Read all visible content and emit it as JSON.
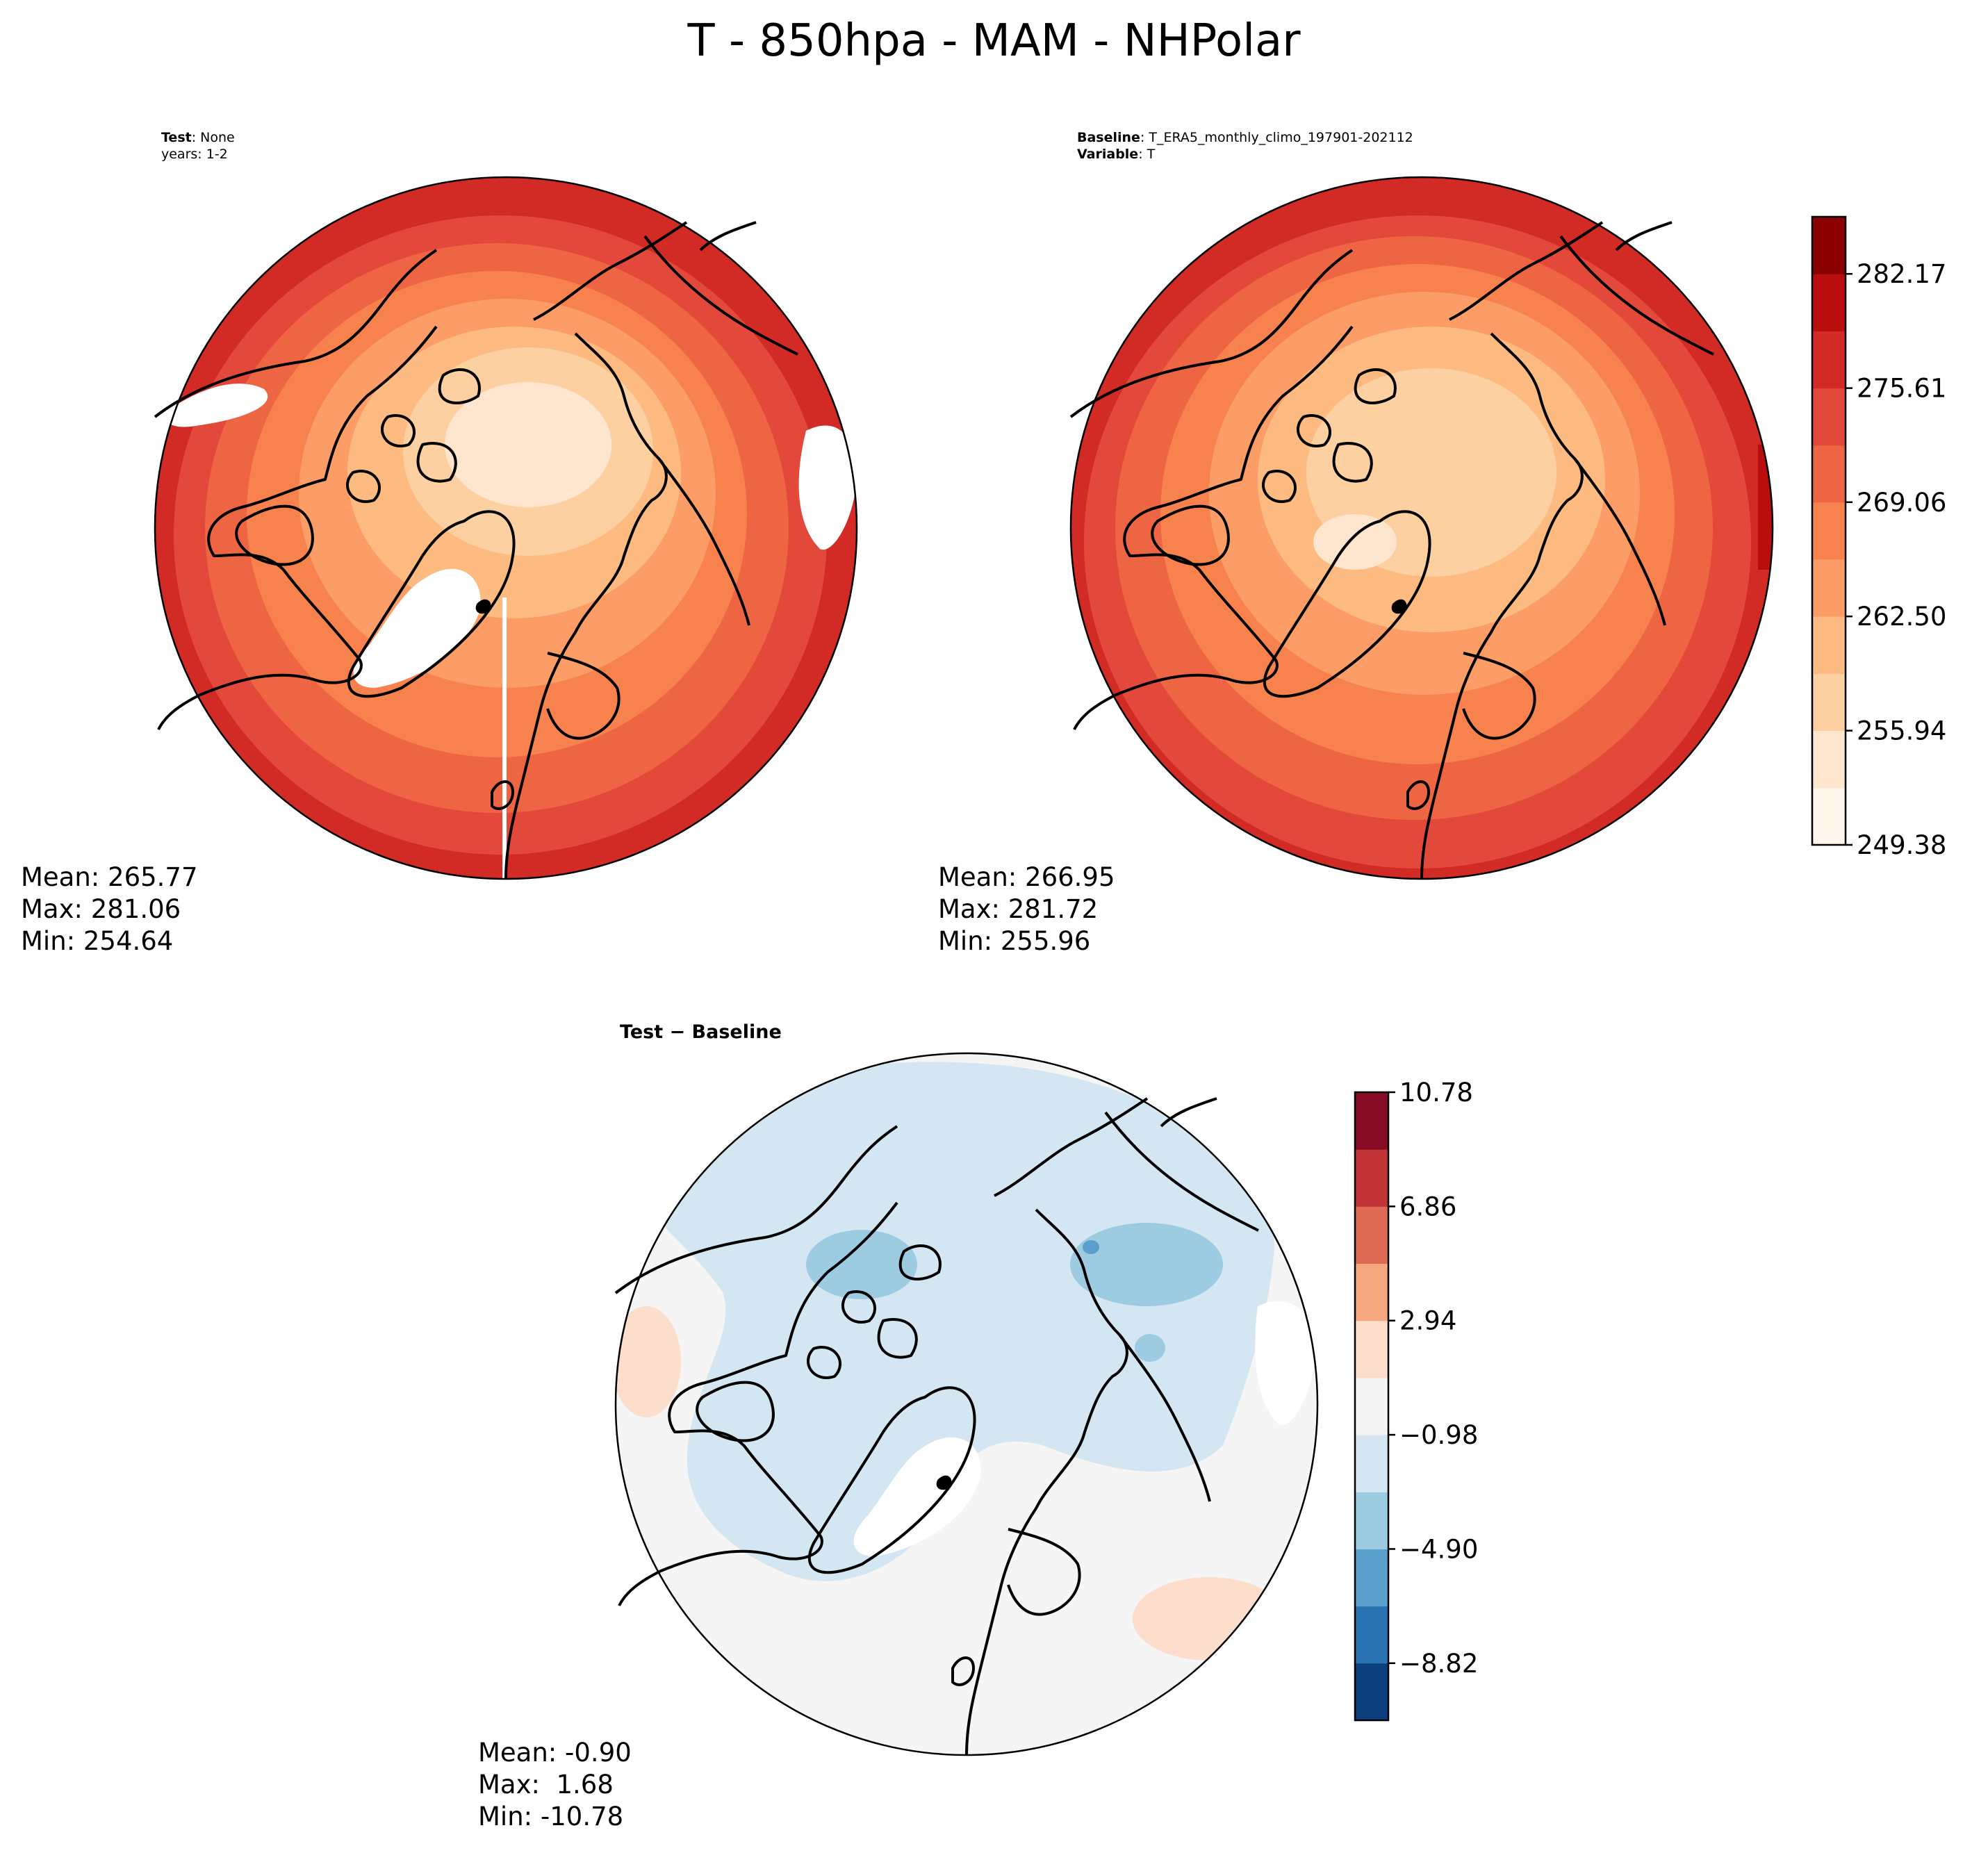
{
  "figure": {
    "title": "T - 850hpa - MAM - NHPolar"
  },
  "chart_data": [
    {
      "type": "heatmap",
      "name": "test",
      "projection": "north-polar-stereographic",
      "header_label_1": "Test",
      "header_value_1": "None",
      "header_line_2": "years: 1-2",
      "stats": {
        "mean": "Mean: 265.77",
        "max": "Max: 281.06",
        "min": "Min: 254.64"
      },
      "colormap": "OrRd-like",
      "missing_regions": [
        "north-atlantic-patch",
        "greenland",
        "east-siberia-patch",
        "meridian-seam"
      ]
    },
    {
      "type": "heatmap",
      "name": "baseline",
      "projection": "north-polar-stereographic",
      "header_label_1": "Baseline",
      "header_value_1": "T_ERA5_monthly_climo_197901-202112",
      "header_label_2": "Variable",
      "header_value_2": "T",
      "stats": {
        "mean": "Mean: 266.95",
        "max": "Max: 281.72",
        "min": "Min: 255.96"
      },
      "colorbar": {
        "levels": [
          249.38,
          252.66,
          255.94,
          259.22,
          262.5,
          265.78,
          269.06,
          272.33,
          275.61,
          278.89,
          282.17,
          285.45
        ],
        "tick_labels": [
          "249.38",
          "255.94",
          "262.50",
          "269.06",
          "275.61",
          "282.17"
        ],
        "colors": [
          "#fff5eb",
          "#fee6ce",
          "#fdd0a2",
          "#fdba81",
          "#fc9d67",
          "#f8824e",
          "#ee6543",
          "#e2493a",
          "#d22b26",
          "#b90d0e",
          "#8b0000"
        ]
      }
    },
    {
      "type": "heatmap",
      "name": "difference",
      "projection": "north-polar-stereographic",
      "title": "Test − Baseline",
      "stats": {
        "mean": "Mean: -0.90",
        "max": "Max:  1.68",
        "min": "Min: -10.78"
      },
      "colorbar": {
        "levels": [
          -10.78,
          -8.82,
          -6.86,
          -4.9,
          -2.94,
          -0.98,
          0.98,
          2.94,
          4.9,
          6.86,
          8.82,
          10.78
        ],
        "tick_labels": [
          "10.78",
          "6.86",
          "2.94",
          "−0.98",
          "−4.90",
          "−8.82"
        ],
        "tick_values": [
          10.78,
          6.86,
          2.94,
          -0.98,
          -4.9,
          -8.82
        ],
        "colors": [
          "#0c3f7d",
          "#2a71b2",
          "#5b9fcd",
          "#9dcbe2",
          "#d4e6f2",
          "#f5f5f5",
          "#fdddcb",
          "#f5a77e",
          "#df6a54",
          "#c23437",
          "#870d26"
        ]
      }
    }
  ]
}
